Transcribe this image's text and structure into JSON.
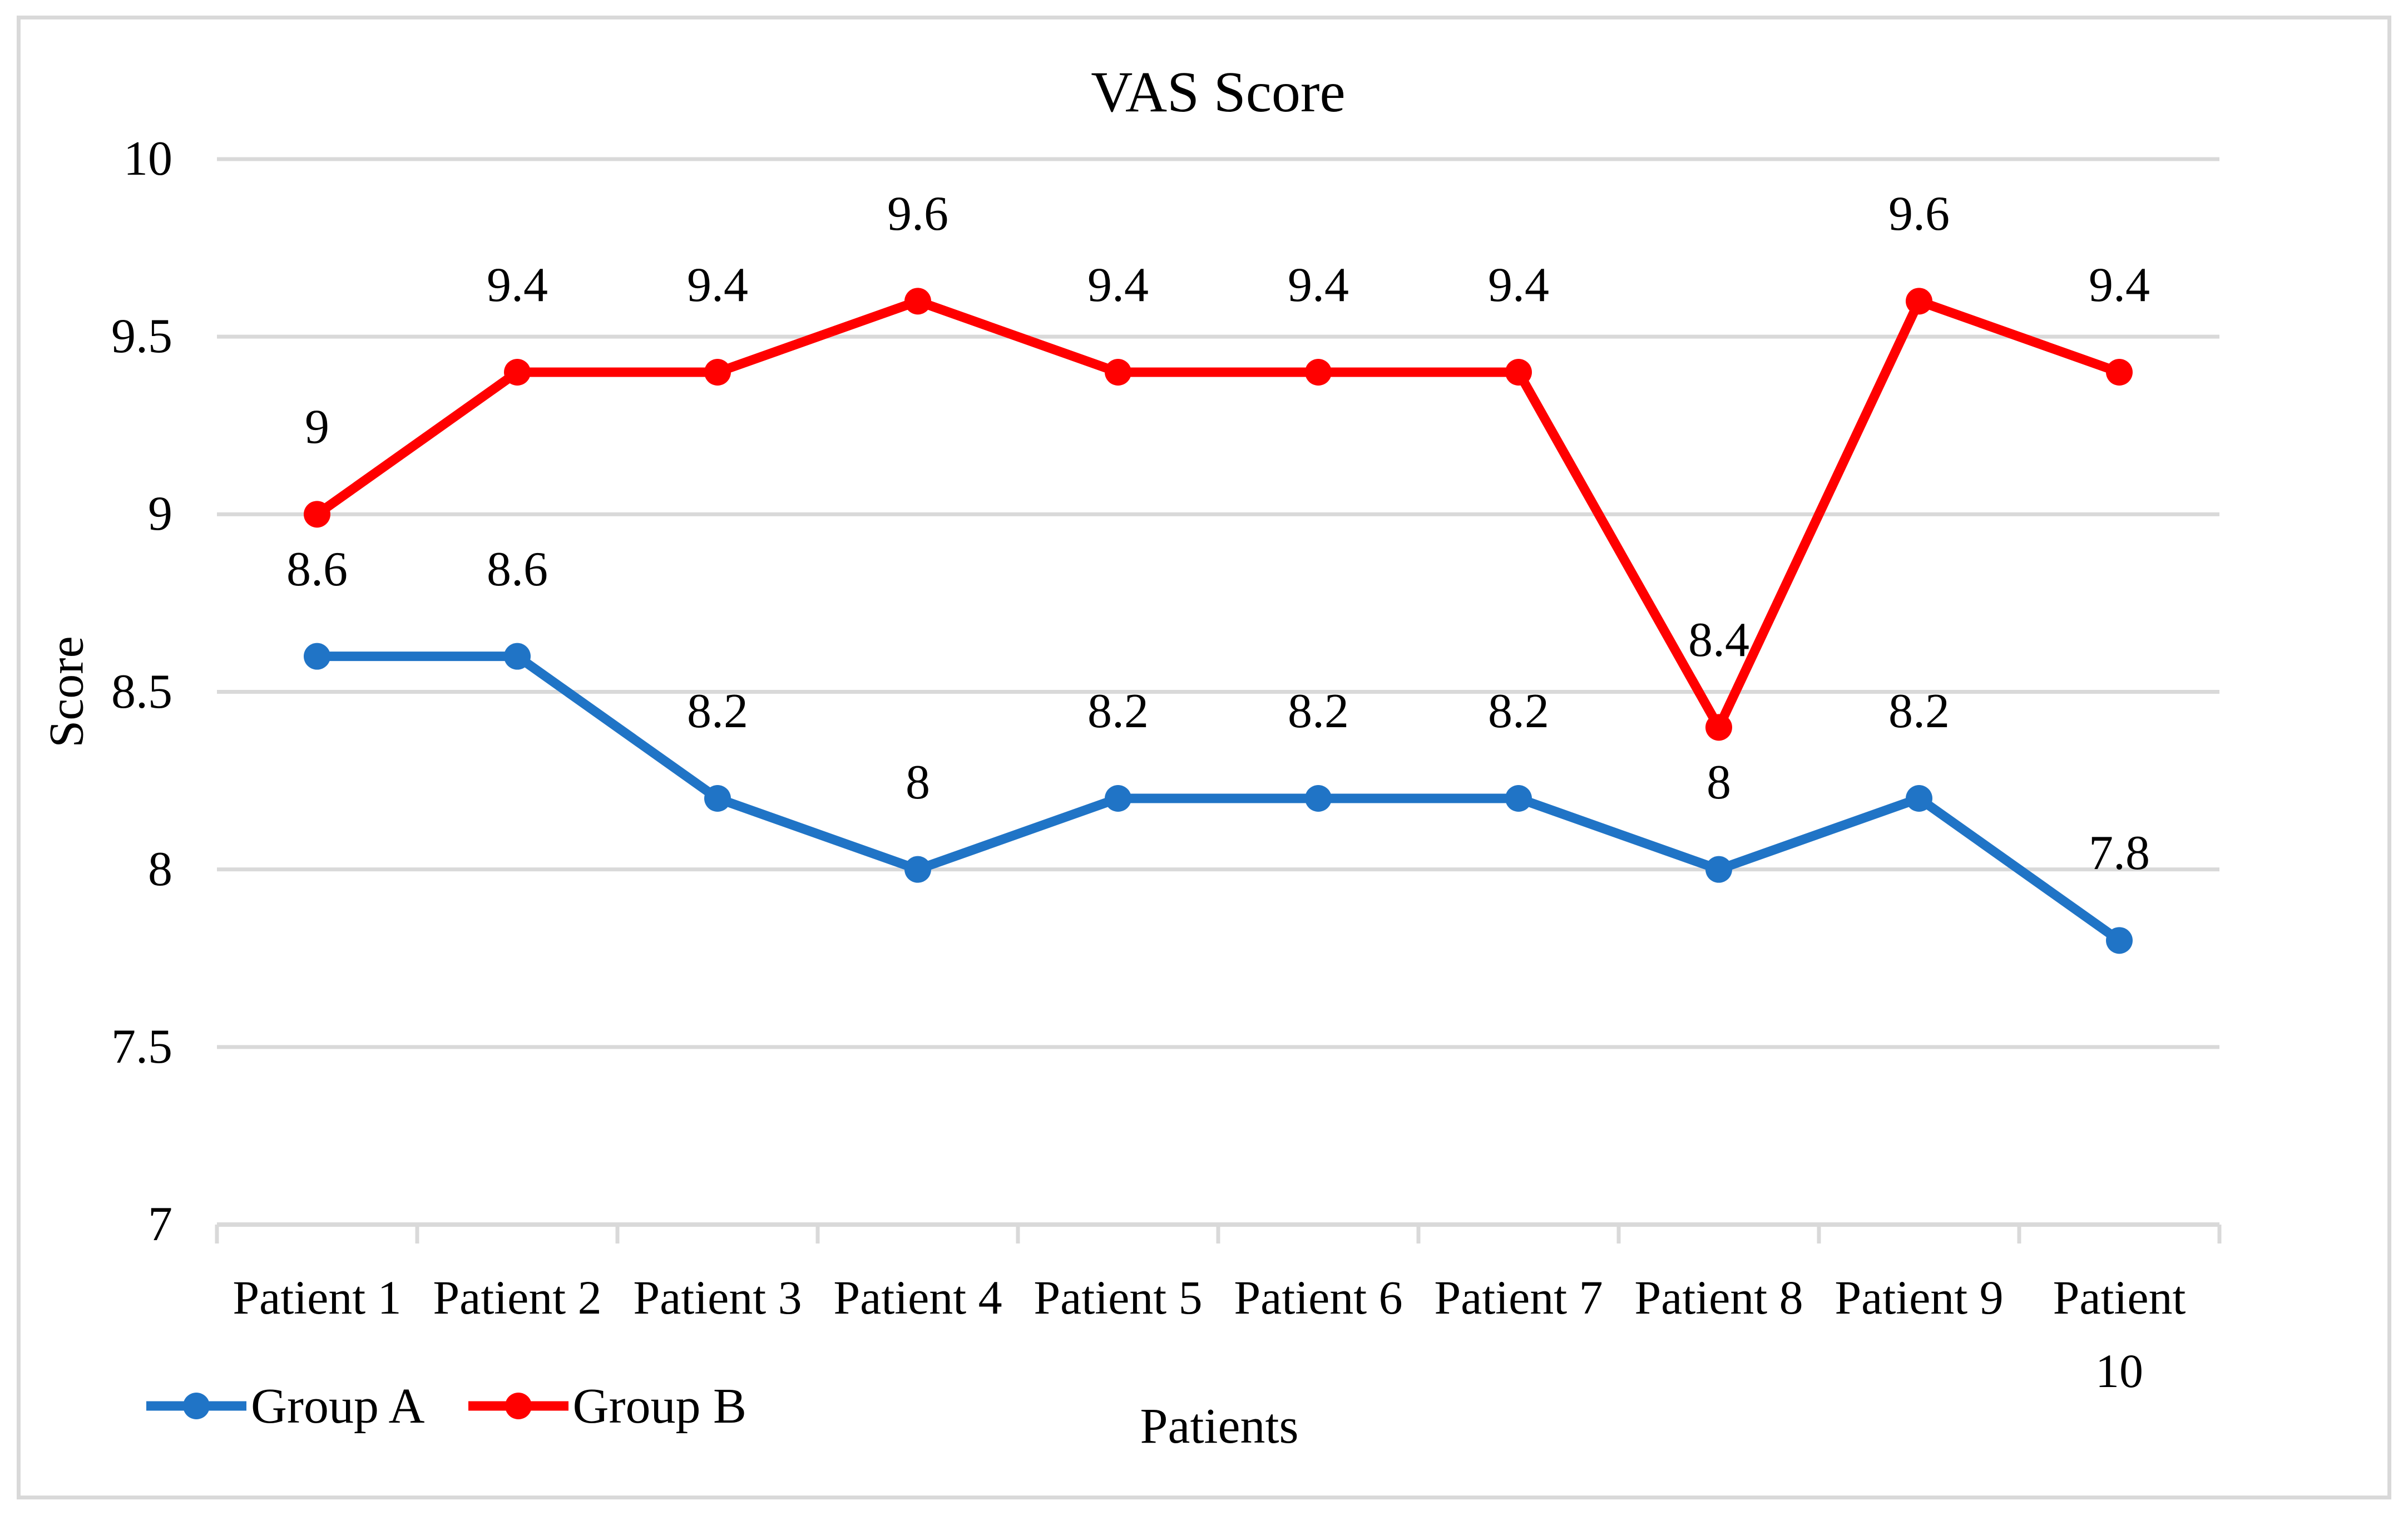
{
  "figure": {
    "background": "#FFFFFF",
    "border_color": "#D9D9D9"
  },
  "chart_data": {
    "type": "line",
    "title": "VAS Score",
    "xlabel": "Patients",
    "ylabel": "Score",
    "categories": [
      "Patient 1",
      "Patient 2",
      "Patient 3",
      "Patient 4",
      "Patient 5",
      "Patient 6",
      "Patient 7",
      "Patient 8",
      "Patient 9",
      "Patient\n10"
    ],
    "series": [
      {
        "name": "Group A",
        "color": "#2074C6",
        "values": [
          8.6,
          8.6,
          8.2,
          8,
          8.2,
          8.2,
          8.2,
          8,
          8.2,
          7.8
        ]
      },
      {
        "name": "Group B",
        "color": "#FF0000",
        "values": [
          9,
          9.4,
          9.4,
          9.6,
          9.4,
          9.4,
          9.4,
          8.4,
          9.6,
          9.4
        ]
      }
    ],
    "ylim": [
      7,
      10
    ],
    "yticks": [
      10,
      9.5,
      9,
      8.5,
      8,
      7.5,
      7
    ],
    "ytick_labels": [
      "10",
      "9.5",
      "9",
      "8.5",
      "8",
      "7.5",
      "7"
    ],
    "grid": true,
    "gridline_color": "#D9D9D9",
    "axis_color": "#D9D9D9",
    "data_labels": true,
    "legend_position": "bottom-left",
    "legend_entries": [
      "Group A",
      "Group B"
    ]
  }
}
